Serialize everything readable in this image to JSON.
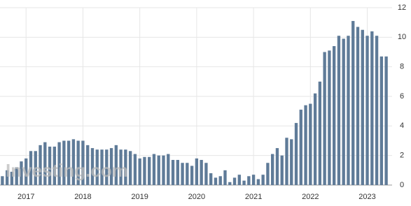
{
  "chart_data": {
    "type": "bar",
    "watermark": "Investing.com",
    "categories": [
      null,
      null,
      null,
      null,
      null,
      "2017",
      null,
      null,
      null,
      null,
      null,
      null,
      null,
      null,
      null,
      null,
      null,
      "2018",
      null,
      null,
      null,
      null,
      null,
      null,
      null,
      null,
      null,
      null,
      null,
      "2019",
      null,
      null,
      null,
      null,
      null,
      null,
      null,
      null,
      null,
      null,
      null,
      "2020",
      null,
      null,
      null,
      null,
      null,
      null,
      null,
      null,
      null,
      null,
      null,
      "2021",
      null,
      null,
      null,
      null,
      null,
      null,
      null,
      null,
      null,
      null,
      null,
      "2022",
      null,
      null,
      null,
      null,
      null,
      null,
      null,
      null,
      null,
      null,
      null,
      "2023",
      null,
      null,
      null,
      null
    ],
    "values": [
      0.6,
      1.0,
      0.9,
      1.2,
      1.6,
      1.8,
      2.3,
      2.3,
      2.7,
      2.9,
      2.6,
      2.6,
      2.9,
      3.0,
      3.0,
      3.1,
      3.0,
      3.0,
      2.7,
      2.5,
      2.4,
      2.4,
      2.4,
      2.5,
      2.7,
      2.4,
      2.4,
      2.3,
      2.1,
      1.8,
      1.9,
      1.9,
      2.1,
      2.0,
      2.0,
      2.1,
      1.7,
      1.7,
      1.5,
      1.5,
      1.3,
      1.8,
      1.7,
      1.5,
      0.8,
      0.5,
      0.6,
      1.0,
      0.2,
      0.5,
      0.7,
      0.3,
      0.6,
      0.7,
      0.4,
      0.7,
      1.5,
      2.1,
      2.5,
      2.0,
      3.2,
      3.1,
      4.2,
      5.1,
      5.4,
      5.5,
      6.2,
      7.0,
      9.0,
      9.1,
      9.4,
      10.1,
      9.9,
      10.1,
      11.1,
      10.7,
      10.5,
      10.1,
      10.4,
      10.1,
      8.7,
      8.7
    ],
    "color": "#5f7b98",
    "ylim": [
      0,
      12
    ],
    "yticks": [
      0,
      2,
      4,
      6,
      8,
      10,
      12
    ],
    "grid": true
  }
}
